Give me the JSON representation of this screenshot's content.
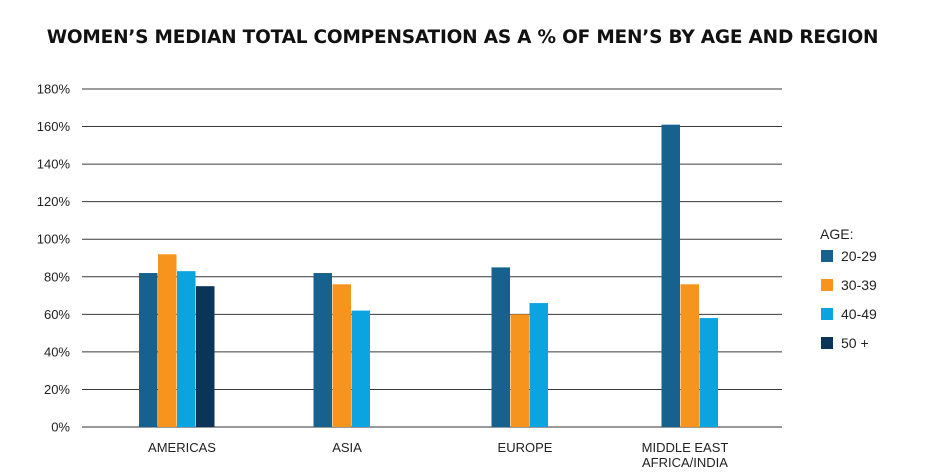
{
  "chart_data": {
    "type": "bar",
    "title": "WOMEN’S MEDIAN TOTAL COMPENSATION AS A % OF MEN’S BY AGE AND REGION",
    "xlabel": "",
    "ylabel": "",
    "ylim": [
      0,
      180
    ],
    "yticks": [
      "0%",
      "20%",
      "40%",
      "60%",
      "80%",
      "100%",
      "120%",
      "140%",
      "160%",
      "180%"
    ],
    "categories": [
      [
        "AMERICAS"
      ],
      [
        "ASIA"
      ],
      [
        "EUROPE"
      ],
      [
        "MIDDLE EAST",
        "AFRICA/INDIA"
      ]
    ],
    "grid": true,
    "legend_position": "right",
    "legend_title": "AGE:",
    "series": [
      {
        "name": "20-29",
        "color": "#17618f",
        "values": [
          82,
          82,
          85,
          161
        ]
      },
      {
        "name": "30-39",
        "color": "#f7941d",
        "values": [
          92,
          76,
          60,
          76
        ]
      },
      {
        "name": "40-49",
        "color": "#0ba4e0",
        "values": [
          83,
          62,
          66,
          58
        ]
      },
      {
        "name": "50 +",
        "color": "#0b3558",
        "values": [
          75,
          null,
          null,
          null
        ]
      }
    ]
  }
}
